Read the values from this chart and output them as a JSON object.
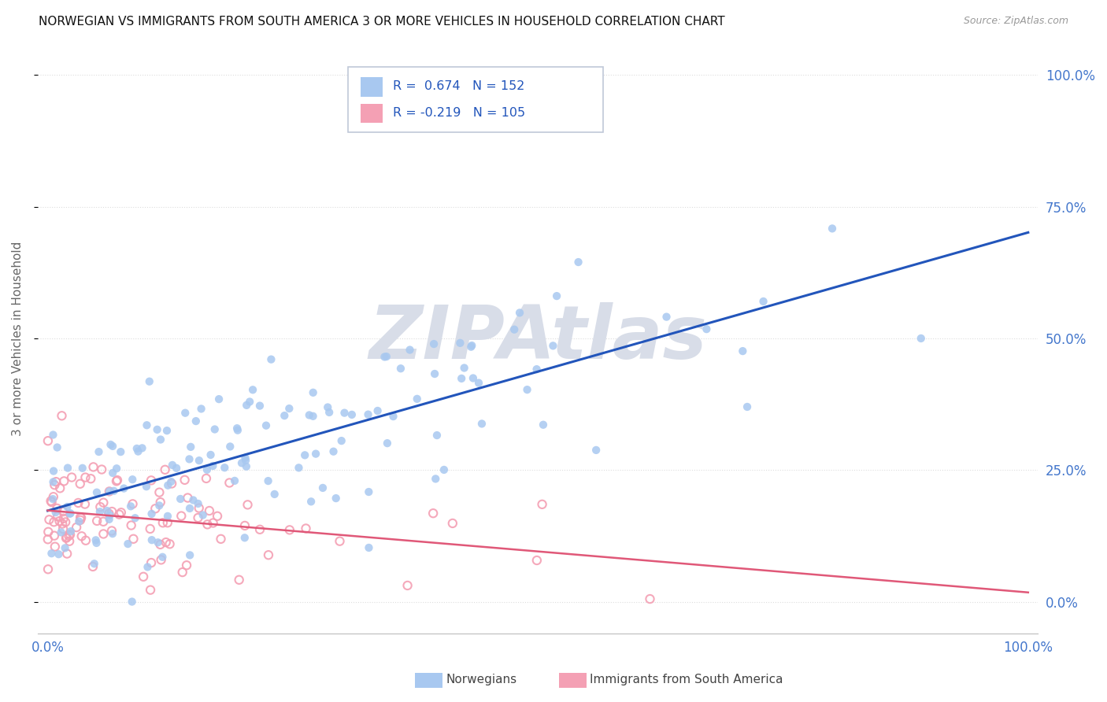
{
  "title": "NORWEGIAN VS IMMIGRANTS FROM SOUTH AMERICA 3 OR MORE VEHICLES IN HOUSEHOLD CORRELATION CHART",
  "source": "Source: ZipAtlas.com",
  "ylabel": "3 or more Vehicles in Household",
  "r_norwegian": 0.674,
  "n_norwegian": 152,
  "r_immigrant": -0.219,
  "n_immigrant": 105,
  "norwegian_color": "#a8c8f0",
  "norwegian_edge": "#7aaed8",
  "immigrant_color": "#f4a0b4",
  "immigrant_edge": "#e07090",
  "trend_norwegian_color": "#2255bb",
  "trend_immigrant_color_solid": "#e05878",
  "trend_immigrant_color_dashed": "#e05878",
  "background_color": "#ffffff",
  "watermark_text": "ZIPAtlas",
  "watermark_color": "#d8dde8",
  "y_tick_labels": [
    "0.0%",
    "25.0%",
    "50.0%",
    "75.0%",
    "100.0%"
  ],
  "y_tick_vals": [
    0.0,
    0.25,
    0.5,
    0.75,
    1.0
  ],
  "x_tick_labels": [
    "0.0%",
    "100.0%"
  ],
  "x_tick_vals": [
    0.0,
    1.0
  ],
  "tick_color": "#4477cc",
  "ylabel_color": "#666666",
  "title_color": "#111111",
  "source_color": "#999999",
  "legend_box_color": "#f0f4f8",
  "legend_border_color": "#c0c8d8",
  "legend_text_color": "#2255bb",
  "bottom_legend_text_color": "#444444"
}
